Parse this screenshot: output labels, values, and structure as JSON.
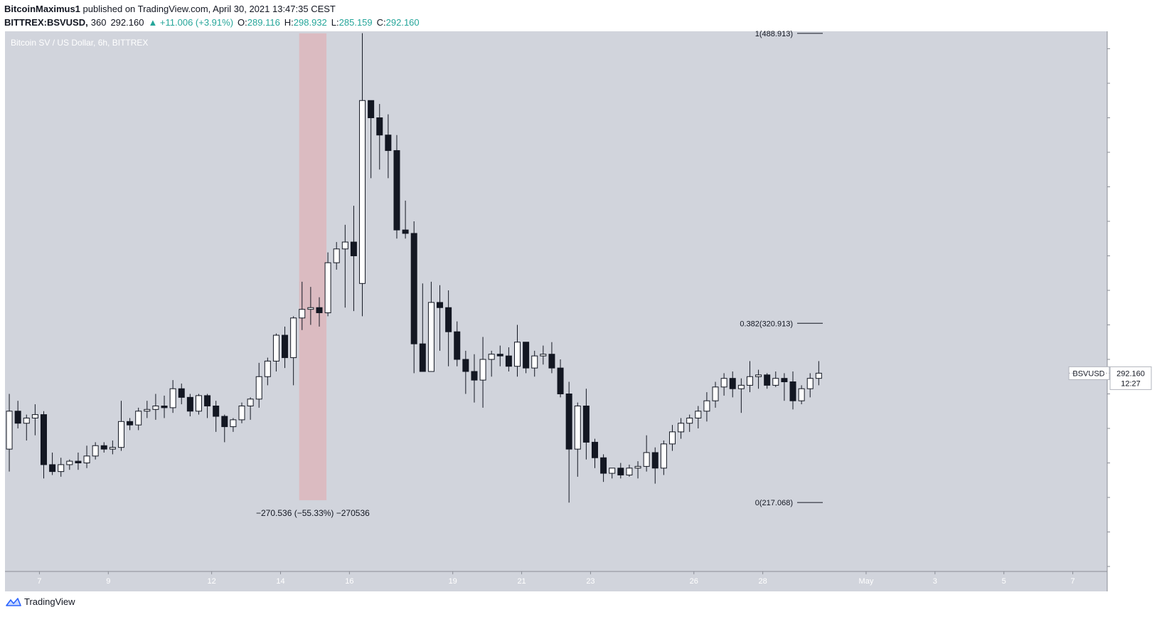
{
  "header": {
    "author": "BitcoinMaximus1",
    "published_text": "published on TradingView.com, April 30, 2021 13:47:35 CEST",
    "symbol": "BITTREX:BSVUSD,",
    "timeframe": "360",
    "price": "292.160",
    "change": "▲ +11.006 (+3.91%)",
    "open_label": "O:",
    "open": "289.116",
    "high_label": "H:",
    "high": "298.932",
    "low_label": "L:",
    "low": "285.159",
    "close_label": "C:",
    "close": "292.160"
  },
  "chart_title": "Bitcoin SV / US Dollar, 6h, BITTREX",
  "currency": "USD",
  "price_tag": {
    "symbol": "BSVUSD",
    "price": "292.160",
    "countdown": "12:27"
  },
  "footer": {
    "brand": "TradingView"
  },
  "colors": {
    "background": "#d1d4dc",
    "up_fill": "#ffffff",
    "down_fill": "#131722",
    "highlight": "#e3a6ab",
    "text": "#131722"
  },
  "chart_data": {
    "type": "candlestick",
    "title": "Bitcoin SV / US Dollar, 6h, BITTREX",
    "ylim": [
      180,
      500
    ],
    "yticks": [
      "180.000",
      "200.000",
      "220.000",
      "240.000",
      "260.000",
      "280.000",
      "300.000",
      "320.000",
      "340.000",
      "360.000",
      "380.000",
      "400.000",
      "420.000",
      "440.000",
      "460.000",
      "480.000",
      "500.000"
    ],
    "x_start": "Apr 6, 2021 00:00",
    "x_end": "May 8, 2021 00:00",
    "xticks": [
      {
        "label": "7",
        "t": "Apr 7"
      },
      {
        "label": "9",
        "t": "Apr 9"
      },
      {
        "label": "12",
        "t": "Apr 12"
      },
      {
        "label": "14",
        "t": "Apr 14"
      },
      {
        "label": "16",
        "t": "Apr 16"
      },
      {
        "label": "19",
        "t": "Apr 19"
      },
      {
        "label": "21",
        "t": "Apr 21"
      },
      {
        "label": "23",
        "t": "Apr 23"
      },
      {
        "label": "26",
        "t": "Apr 26"
      },
      {
        "label": "28",
        "t": "Apr 28"
      },
      {
        "label": "May",
        "t": "May 1"
      },
      {
        "label": "3",
        "t": "May 3"
      },
      {
        "label": "5",
        "t": "May 5"
      },
      {
        "label": "7",
        "t": "May 7"
      }
    ],
    "candles": [
      {
        "o": 248,
        "h": 280,
        "l": 235,
        "c": 270
      },
      {
        "o": 270,
        "h": 276,
        "l": 260,
        "c": 263
      },
      {
        "o": 263,
        "h": 268,
        "l": 253,
        "c": 266
      },
      {
        "o": 266,
        "h": 274,
        "l": 256,
        "c": 268
      },
      {
        "o": 268,
        "h": 270,
        "l": 231,
        "c": 239
      },
      {
        "o": 239,
        "h": 246,
        "l": 233,
        "c": 235
      },
      {
        "o": 235,
        "h": 243,
        "l": 232,
        "c": 239
      },
      {
        "o": 239,
        "h": 242,
        "l": 236,
        "c": 241
      },
      {
        "o": 241,
        "h": 246,
        "l": 236,
        "c": 240
      },
      {
        "o": 240,
        "h": 250,
        "l": 237,
        "c": 244
      },
      {
        "o": 244,
        "h": 252,
        "l": 242,
        "c": 250
      },
      {
        "o": 250,
        "h": 252,
        "l": 246,
        "c": 248
      },
      {
        "o": 248,
        "h": 253,
        "l": 245,
        "c": 249
      },
      {
        "o": 249,
        "h": 276,
        "l": 247,
        "c": 264
      },
      {
        "o": 264,
        "h": 266,
        "l": 259,
        "c": 262
      },
      {
        "o": 262,
        "h": 272,
        "l": 259,
        "c": 270
      },
      {
        "o": 270,
        "h": 276,
        "l": 266,
        "c": 271
      },
      {
        "o": 271,
        "h": 280,
        "l": 265,
        "c": 273
      },
      {
        "o": 273,
        "h": 279,
        "l": 266,
        "c": 272
      },
      {
        "o": 272,
        "h": 288,
        "l": 269,
        "c": 283
      },
      {
        "o": 283,
        "h": 286,
        "l": 274,
        "c": 278
      },
      {
        "o": 278,
        "h": 280,
        "l": 267,
        "c": 270
      },
      {
        "o": 270,
        "h": 280,
        "l": 268,
        "c": 279
      },
      {
        "o": 279,
        "h": 280,
        "l": 266,
        "c": 273
      },
      {
        "o": 273,
        "h": 276,
        "l": 258,
        "c": 267
      },
      {
        "o": 267,
        "h": 268,
        "l": 252,
        "c": 261
      },
      {
        "o": 261,
        "h": 266,
        "l": 258,
        "c": 265
      },
      {
        "o": 265,
        "h": 275,
        "l": 263,
        "c": 273
      },
      {
        "o": 273,
        "h": 278,
        "l": 265,
        "c": 277
      },
      {
        "o": 277,
        "h": 298,
        "l": 272,
        "c": 290
      },
      {
        "o": 290,
        "h": 301,
        "l": 285,
        "c": 299
      },
      {
        "o": 299,
        "h": 315,
        "l": 293,
        "c": 314
      },
      {
        "o": 314,
        "h": 319,
        "l": 295,
        "c": 301
      },
      {
        "o": 301,
        "h": 325,
        "l": 285,
        "c": 324
      },
      {
        "o": 324,
        "h": 345,
        "l": 317,
        "c": 329
      },
      {
        "o": 329,
        "h": 342,
        "l": 320,
        "c": 330
      },
      {
        "o": 330,
        "h": 336,
        "l": 319,
        "c": 327
      },
      {
        "o": 327,
        "h": 362,
        "l": 325,
        "c": 356
      },
      {
        "o": 356,
        "h": 368,
        "l": 352,
        "c": 364
      },
      {
        "o": 364,
        "h": 378,
        "l": 330,
        "c": 368
      },
      {
        "o": 368,
        "h": 389,
        "l": 328,
        "c": 360
      },
      {
        "o": 344,
        "h": 489,
        "l": 325,
        "c": 450
      },
      {
        "o": 450,
        "h": 450,
        "l": 405,
        "c": 440
      },
      {
        "o": 440,
        "h": 448,
        "l": 410,
        "c": 430
      },
      {
        "o": 430,
        "h": 442,
        "l": 405,
        "c": 421
      },
      {
        "o": 421,
        "h": 430,
        "l": 370,
        "c": 375
      },
      {
        "o": 375,
        "h": 392,
        "l": 370,
        "c": 373
      },
      {
        "o": 373,
        "h": 380,
        "l": 292,
        "c": 309
      },
      {
        "o": 309,
        "h": 344,
        "l": 293,
        "c": 293
      },
      {
        "o": 293,
        "h": 345,
        "l": 293,
        "c": 333
      },
      {
        "o": 333,
        "h": 343,
        "l": 305,
        "c": 330
      },
      {
        "o": 330,
        "h": 340,
        "l": 296,
        "c": 316
      },
      {
        "o": 316,
        "h": 322,
        "l": 296,
        "c": 300
      },
      {
        "o": 300,
        "h": 305,
        "l": 280,
        "c": 293
      },
      {
        "o": 293,
        "h": 303,
        "l": 275,
        "c": 288
      },
      {
        "o": 288,
        "h": 313,
        "l": 272,
        "c": 300
      },
      {
        "o": 300,
        "h": 305,
        "l": 290,
        "c": 303
      },
      {
        "o": 303,
        "h": 308,
        "l": 296,
        "c": 302
      },
      {
        "o": 302,
        "h": 307,
        "l": 293,
        "c": 296
      },
      {
        "o": 296,
        "h": 320,
        "l": 290,
        "c": 310
      },
      {
        "o": 310,
        "h": 310,
        "l": 292,
        "c": 295
      },
      {
        "o": 295,
        "h": 305,
        "l": 290,
        "c": 302
      },
      {
        "o": 302,
        "h": 308,
        "l": 297,
        "c": 303
      },
      {
        "o": 303,
        "h": 310,
        "l": 292,
        "c": 295
      },
      {
        "o": 295,
        "h": 300,
        "l": 278,
        "c": 280
      },
      {
        "o": 280,
        "h": 287,
        "l": 217,
        "c": 248
      },
      {
        "o": 248,
        "h": 275,
        "l": 232,
        "c": 273
      },
      {
        "o": 273,
        "h": 283,
        "l": 242,
        "c": 252
      },
      {
        "o": 252,
        "h": 254,
        "l": 237,
        "c": 243
      },
      {
        "o": 243,
        "h": 245,
        "l": 229,
        "c": 234
      },
      {
        "o": 234,
        "h": 237,
        "l": 231,
        "c": 237
      },
      {
        "o": 237,
        "h": 240,
        "l": 231,
        "c": 233
      },
      {
        "o": 233,
        "h": 239,
        "l": 232,
        "c": 237
      },
      {
        "o": 237,
        "h": 241,
        "l": 231,
        "c": 238
      },
      {
        "o": 238,
        "h": 256,
        "l": 235,
        "c": 246
      },
      {
        "o": 246,
        "h": 249,
        "l": 228,
        "c": 237
      },
      {
        "o": 237,
        "h": 253,
        "l": 233,
        "c": 251
      },
      {
        "o": 251,
        "h": 262,
        "l": 247,
        "c": 258
      },
      {
        "o": 258,
        "h": 266,
        "l": 254,
        "c": 263
      },
      {
        "o": 263,
        "h": 268,
        "l": 258,
        "c": 266
      },
      {
        "o": 266,
        "h": 273,
        "l": 260,
        "c": 270
      },
      {
        "o": 270,
        "h": 281,
        "l": 264,
        "c": 276
      },
      {
        "o": 276,
        "h": 287,
        "l": 272,
        "c": 284
      },
      {
        "o": 284,
        "h": 292,
        "l": 279,
        "c": 289
      },
      {
        "o": 289,
        "h": 293,
        "l": 278,
        "c": 283
      },
      {
        "o": 283,
        "h": 289,
        "l": 269,
        "c": 285
      },
      {
        "o": 285,
        "h": 299,
        "l": 281,
        "c": 290
      },
      {
        "o": 290,
        "h": 294,
        "l": 283,
        "c": 291
      },
      {
        "o": 291,
        "h": 292,
        "l": 283,
        "c": 285
      },
      {
        "o": 285,
        "h": 293,
        "l": 284,
        "c": 289
      },
      {
        "o": 289,
        "h": 292,
        "l": 276,
        "c": 287
      },
      {
        "o": 287,
        "h": 293,
        "l": 271,
        "c": 276
      },
      {
        "o": 276,
        "h": 285,
        "l": 274,
        "c": 283
      },
      {
        "o": 283,
        "h": 292,
        "l": 278,
        "c": 289
      },
      {
        "o": 289,
        "h": 299,
        "l": 285,
        "c": 292
      }
    ],
    "fib_levels": [
      {
        "label": "1(488.913)",
        "value": 488.913
      },
      {
        "label": "0.382(320.913)",
        "value": 320.913
      },
      {
        "label": "0(217.068)",
        "value": 217.068
      }
    ],
    "measure": {
      "label": "−270.536 (−55.33%) −270536",
      "from_price": 488.913,
      "to_price": 218.4,
      "t_start": "Apr 14, 2021 13:00",
      "t_end": "Apr 15, 2021 08:00"
    }
  }
}
